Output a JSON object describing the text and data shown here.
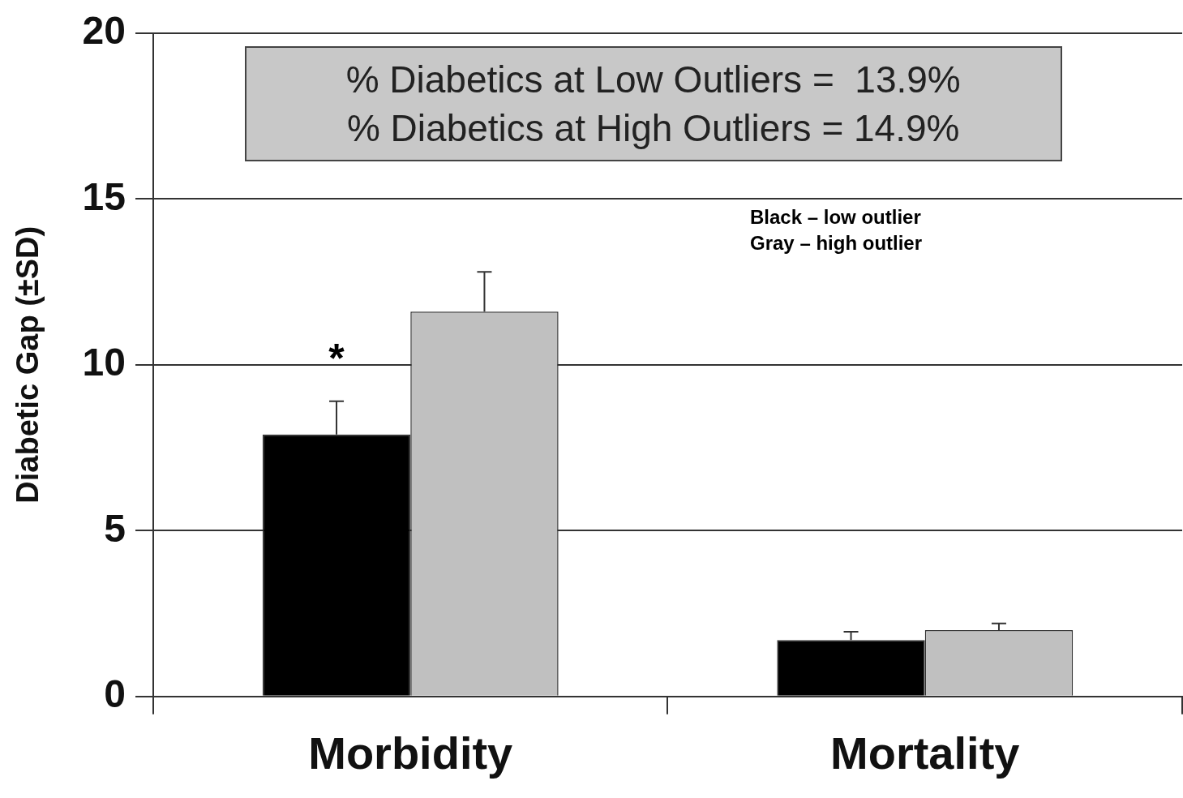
{
  "chart_data": {
    "type": "bar",
    "ylabel": "Diabetic Gap (±SD)",
    "categories": [
      "Morbidity",
      "Mortality"
    ],
    "series": [
      {
        "color": "#000000",
        "values": [
          7.9,
          1.7
        ],
        "errors": [
          [
            7.9,
            8.9
          ],
          [
            1.7,
            1.95
          ]
        ]
      },
      {
        "color": "#c0c0c0",
        "values": [
          11.6,
          2.0
        ],
        "errors": [
          [
            11.6,
            12.8
          ],
          [
            2.0,
            2.2
          ]
        ]
      }
    ],
    "ylim": [
      0,
      20
    ],
    "yticks": [
      0,
      5,
      10,
      15,
      20
    ],
    "grid": "y",
    "legend": false,
    "annotations": [
      "% Diabetics at Low Outliers =  13.9%",
      "% Diabetics at High Outliers = 14.9%",
      "Black – low outlier",
      "Gray – high outlier",
      {
        "text": "*",
        "x": "Morbidity",
        "y": 10.4
      }
    ]
  }
}
